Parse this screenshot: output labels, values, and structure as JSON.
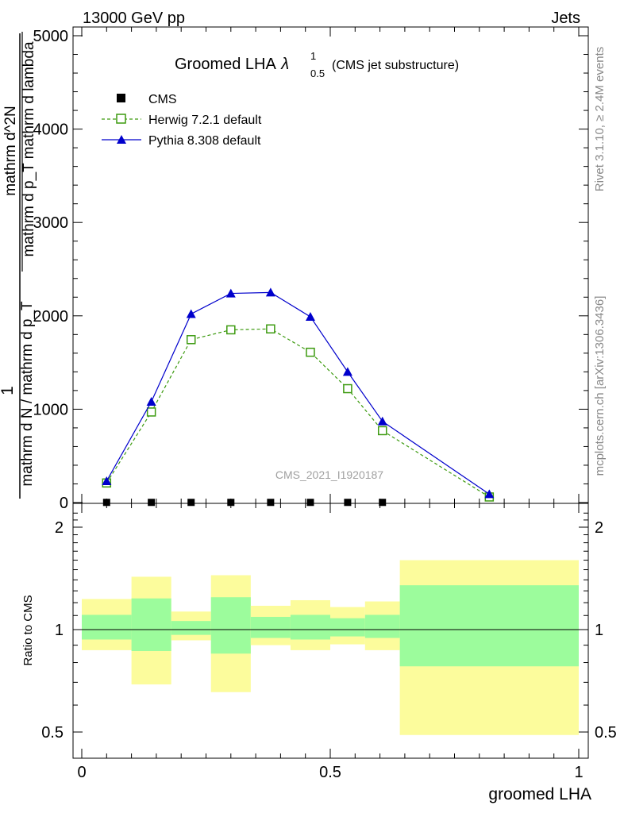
{
  "header": {
    "left": "13000 GeV pp",
    "right": "Jets"
  },
  "side_labels": {
    "rivet": "Rivet 3.1.10, ≥ 2.4M events",
    "mcplots": "mcplots.cern.ch [arXiv:1306.3436]"
  },
  "watermark": "CMS_2021_I1920187",
  "chart_data": [
    {
      "type": "line",
      "panel": "main",
      "title": "Groomed LHA",
      "title_symbol": "λ",
      "title_sup": "1",
      "title_sub": "0.5",
      "title_suffix": "(CMS jet substructure)",
      "ylabel_lines": [
        "1",
        "mathrm d N / mathrm d p_T",
        "mathrm d^2N",
        "mathrm d p_T mathrm d lambda"
      ],
      "xlim": [
        0,
        1
      ],
      "ylim": [
        0,
        5000
      ],
      "yticks": [
        0,
        1000,
        2000,
        3000,
        4000,
        5000
      ],
      "yticklabels": [
        "0",
        "1000",
        "2000",
        "3000",
        "4000",
        "5000"
      ],
      "legend_position": "top-left",
      "series": [
        {
          "name": "CMS",
          "style": "square-filled",
          "color": "#000000",
          "x": [
            0.05,
            0.14,
            0.22,
            0.3,
            0.38,
            0.46,
            0.535,
            0.605
          ],
          "y": [
            2,
            2,
            2,
            2,
            2,
            2,
            2,
            2
          ]
        },
        {
          "name": "Herwig 7.2.1 default",
          "style": "square-open-dashed",
          "color": "#3c9a0f",
          "x": [
            0.05,
            0.14,
            0.22,
            0.3,
            0.38,
            0.46,
            0.535,
            0.605,
            0.82
          ],
          "y": [
            210,
            970,
            1745,
            1850,
            1860,
            1610,
            1220,
            770,
            60
          ]
        },
        {
          "name": "Pythia 8.308 default",
          "style": "triangle-filled-solid",
          "color": "#0000cc",
          "x": [
            0.05,
            0.14,
            0.22,
            0.3,
            0.38,
            0.46,
            0.535,
            0.605,
            0.82
          ],
          "y": [
            230,
            1080,
            2020,
            2240,
            2250,
            1990,
            1400,
            870,
            90
          ]
        }
      ]
    },
    {
      "type": "area",
      "panel": "ratio",
      "ylabel": "Ratio to CMS",
      "xlabel": "groomed LHA",
      "xlim": [
        0,
        1
      ],
      "ylim": [
        0.4,
        2.25
      ],
      "yticks": [
        0.5,
        1,
        2
      ],
      "yticklabels": [
        "0.5",
        "1",
        "2"
      ],
      "xticks": [
        0,
        0.5,
        1
      ],
      "xticklabels": [
        "0",
        "0.5",
        "1"
      ],
      "bins": [
        {
          "x0": 0.0,
          "x1": 0.1,
          "inner": [
            0.935,
            1.105
          ],
          "outer": [
            0.87,
            1.23
          ]
        },
        {
          "x0": 0.1,
          "x1": 0.18,
          "inner": [
            0.865,
            1.235
          ],
          "outer": [
            0.69,
            1.43
          ]
        },
        {
          "x0": 0.18,
          "x1": 0.26,
          "inner": [
            0.965,
            1.06
          ],
          "outer": [
            0.93,
            1.13
          ]
        },
        {
          "x0": 0.26,
          "x1": 0.34,
          "inner": [
            0.85,
            1.245
          ],
          "outer": [
            0.655,
            1.445
          ]
        },
        {
          "x0": 0.34,
          "x1": 0.42,
          "inner": [
            0.945,
            1.09
          ],
          "outer": [
            0.9,
            1.175
          ]
        },
        {
          "x0": 0.42,
          "x1": 0.5,
          "inner": [
            0.935,
            1.105
          ],
          "outer": [
            0.87,
            1.22
          ]
        },
        {
          "x0": 0.5,
          "x1": 0.57,
          "inner": [
            0.955,
            1.08
          ],
          "outer": [
            0.905,
            1.165
          ]
        },
        {
          "x0": 0.57,
          "x1": 0.64,
          "inner": [
            0.945,
            1.105
          ],
          "outer": [
            0.87,
            1.21
          ]
        },
        {
          "x0": 0.64,
          "x1": 1.0,
          "inner": [
            0.78,
            1.35
          ],
          "outer": [
            0.49,
            1.6
          ]
        }
      ],
      "inner_color": "#9cfc9c",
      "outer_color": "#fcfc9c",
      "reference": 1
    }
  ]
}
